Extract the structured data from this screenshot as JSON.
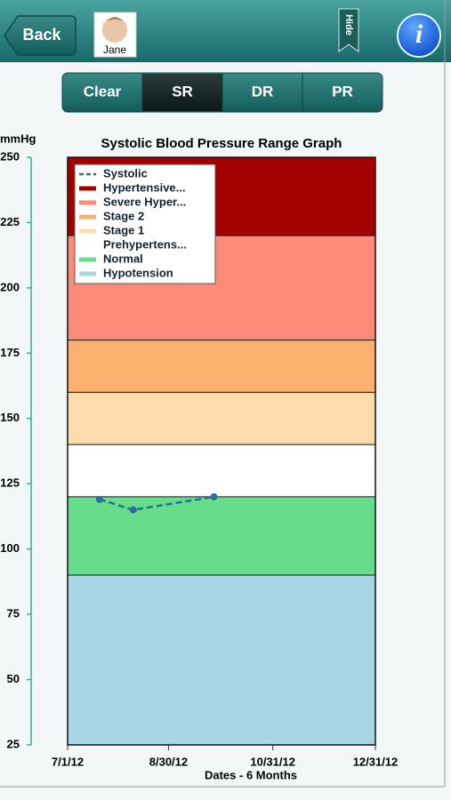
{
  "header": {
    "back": "Back",
    "user": "Jane",
    "hide": "Hide",
    "info": "i"
  },
  "segments": {
    "items": [
      "Clear",
      "SR",
      "DR",
      "PR"
    ],
    "selected": "SR"
  },
  "chart_data": {
    "type": "line",
    "title": "Systolic Blood Pressure Range Graph",
    "y_label": "mmHg",
    "x_label": "Dates - 6 Months",
    "ylim": [
      25,
      250
    ],
    "yticks": [
      25,
      50,
      75,
      100,
      125,
      150,
      175,
      200,
      225,
      250
    ],
    "xlim": [
      "2012-07-01",
      "2012-12-31"
    ],
    "xticks": [
      {
        "value": "2012-07-01",
        "label": "7/1/12"
      },
      {
        "value": "2012-08-30",
        "label": "8/30/12"
      },
      {
        "value": "2012-10-31",
        "label": "10/31/12"
      },
      {
        "value": "2012-12-31",
        "label": "12/31/12"
      }
    ],
    "x": [
      "2012-07-20",
      "2012-08-09",
      "2012-09-26"
    ],
    "series": [
      {
        "name": "Systolic",
        "color": "#2a6f97",
        "values": [
          119,
          115,
          120
        ]
      }
    ],
    "bands": [
      {
        "name": "Hypertensive...",
        "color": "#a50000",
        "range": [
          220,
          250
        ]
      },
      {
        "name": "Severe Hyper...",
        "color": "#fb8b78",
        "range": [
          180,
          220
        ]
      },
      {
        "name": "Stage 2",
        "color": "#fbb06e",
        "range": [
          160,
          180
        ]
      },
      {
        "name": "Stage 1",
        "color": "#fbdcaa",
        "range": [
          140,
          160
        ]
      },
      {
        "name": "Prehypertens...",
        "color": "#ffffff",
        "range": [
          120,
          140
        ]
      },
      {
        "name": "Normal",
        "color": "#66dd8a",
        "range": [
          90,
          120
        ]
      },
      {
        "name": "Hypotension",
        "color": "#a8d4e4",
        "range": [
          25,
          90
        ]
      }
    ],
    "legend": "upper left"
  }
}
